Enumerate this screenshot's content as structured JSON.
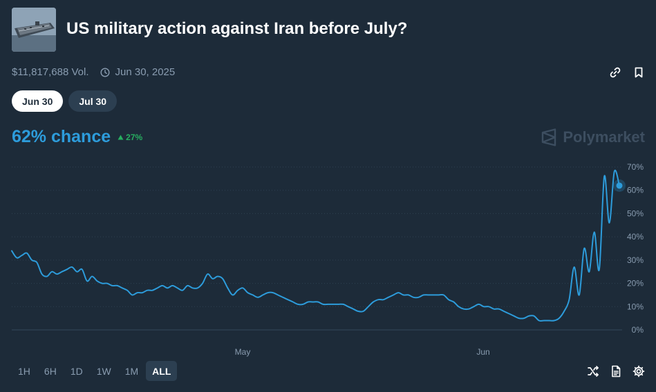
{
  "market": {
    "title": "US military action against Iran before July?",
    "volume": "$11,817,688 Vol.",
    "end_date": "Jun 30, 2025"
  },
  "icons": {
    "thumbnail": "aircraft-carrier-image",
    "clock": "clock-icon",
    "link": "link-icon",
    "bookmark": "bookmark-icon",
    "up": "triangle-up-icon",
    "brand": "polymarket-logo-icon",
    "shuffle": "shuffle-icon",
    "document": "document-icon",
    "settings": "gear-icon"
  },
  "date_options": [
    {
      "label": "Jun 30",
      "active": true
    },
    {
      "label": "Jul 30",
      "active": false
    }
  ],
  "probability": {
    "value": "62% chance",
    "change": "27%"
  },
  "brand": {
    "name": "Polymarket"
  },
  "time_ranges": [
    {
      "label": "1H",
      "active": false
    },
    {
      "label": "6H",
      "active": false
    },
    {
      "label": "1D",
      "active": false
    },
    {
      "label": "1W",
      "active": false
    },
    {
      "label": "1M",
      "active": false
    },
    {
      "label": "ALL",
      "active": true
    }
  ],
  "colors": {
    "line": "#2d9cdb",
    "background": "#1d2b39",
    "positive": "#27ae60",
    "muted": "#899cb0"
  },
  "chart_data": {
    "type": "line",
    "y_unit": "%",
    "ylim": [
      0,
      70
    ],
    "y_ticks": [
      "70%",
      "60%",
      "50%",
      "40%",
      "30%",
      "20%",
      "10%",
      "0%"
    ],
    "x_ticks": [
      "May",
      "Jun"
    ],
    "grid": true,
    "series": [
      {
        "values": [
          34,
          31,
          32,
          33,
          30,
          29,
          24,
          23,
          25,
          24,
          25,
          26,
          27,
          25,
          26,
          21,
          23,
          21,
          20,
          20,
          19,
          19,
          18,
          17,
          15,
          16,
          16,
          17,
          17,
          18,
          19,
          18,
          19,
          18,
          17,
          19,
          18,
          18,
          20,
          24,
          22,
          23,
          22,
          18,
          15,
          17,
          18,
          16,
          15,
          14,
          15,
          16,
          16,
          15,
          14,
          13,
          12,
          11,
          11,
          12,
          12,
          12,
          11,
          11,
          11,
          11,
          11,
          10,
          9,
          8,
          8,
          10,
          12,
          13,
          13,
          14,
          15,
          16,
          15,
          15,
          14,
          14,
          15,
          15,
          15,
          15,
          15,
          13,
          12,
          10,
          9,
          9,
          10,
          11,
          10,
          10,
          9,
          9,
          8,
          7,
          6,
          5,
          5,
          6,
          6,
          4,
          4,
          4,
          4,
          5,
          8,
          13,
          27,
          15,
          35,
          25,
          42,
          26,
          66,
          46,
          68,
          62
        ]
      }
    ]
  }
}
